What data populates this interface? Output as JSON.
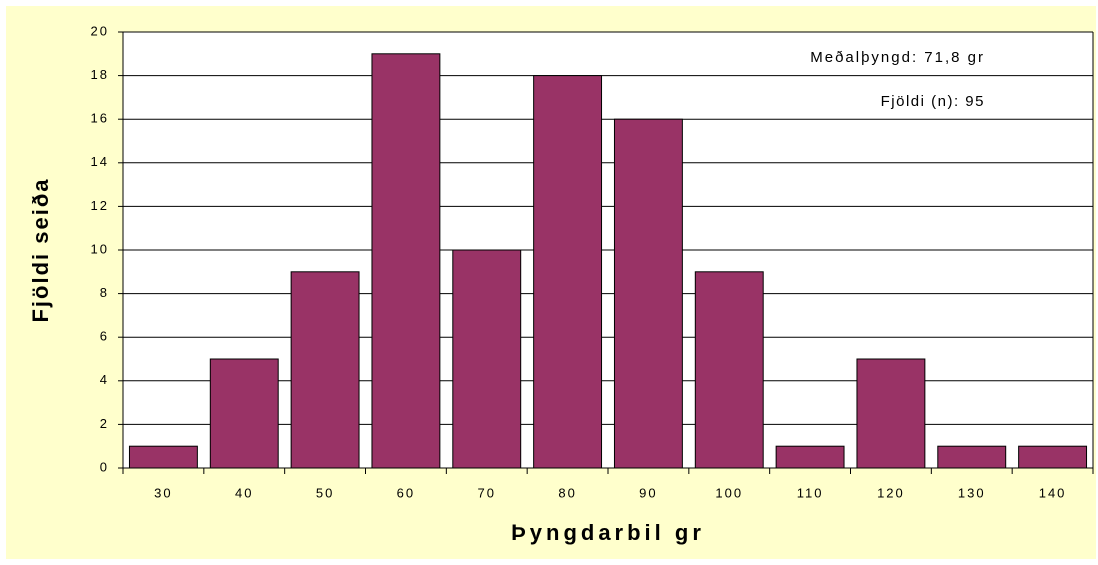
{
  "chart_data": {
    "type": "bar",
    "x_label": "Þyngdarbil gr",
    "y_label": "Fjöldi seiða",
    "annotations": [
      "Meðalþyngd: 71,8 gr",
      "Fjöldi (n): 95"
    ],
    "categories": [
      "30",
      "40",
      "50",
      "60",
      "70",
      "80",
      "90",
      "100",
      "110",
      "120",
      "130",
      "140"
    ],
    "values": [
      1,
      5,
      9,
      19,
      10,
      18,
      16,
      9,
      1,
      5,
      1,
      1
    ],
    "color": "#993366",
    "ylim": [
      0,
      20
    ],
    "yticks": [
      0,
      2,
      4,
      6,
      8,
      10,
      12,
      14,
      16,
      18,
      20
    ],
    "grid": true
  }
}
